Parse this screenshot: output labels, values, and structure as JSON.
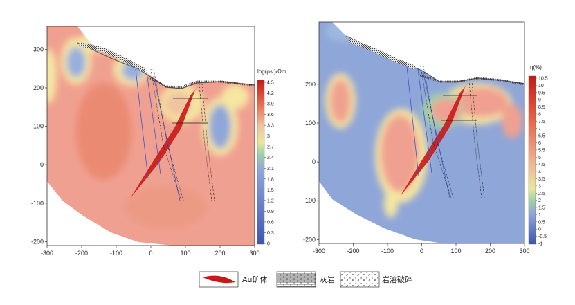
{
  "chart_data": [
    {
      "type": "heatmap",
      "panel": "left",
      "quantity": "resistivity",
      "colorbar_title": "log(ρs )/Ωm",
      "colorbar_ticks": [
        "4.5",
        "4.2",
        "3.9",
        "3.6",
        "3.3",
        "3",
        "2.7",
        "2.4",
        "2.1",
        "1.8",
        "1.5",
        "1.2",
        "0.9",
        "0.6",
        "0.3",
        "0"
      ],
      "colorbar_range": [
        0,
        4.5
      ],
      "xlim": [
        -300,
        300
      ],
      "ylim": [
        -210,
        360
      ],
      "xticks": [
        -300,
        -200,
        -100,
        0,
        100,
        200,
        300
      ],
      "yticks": [
        300,
        200,
        100,
        0,
        -100,
        -200
      ],
      "xtick_labels": [
        "-300",
        "-200",
        "-100",
        "0",
        "100",
        "200",
        "300"
      ],
      "ytick_labels": [
        "300",
        "200",
        "100",
        "0",
        "-100",
        "-200"
      ],
      "grid": false,
      "legend": "none"
    },
    {
      "type": "heatmap",
      "panel": "right",
      "quantity": "chargeability",
      "colorbar_title": "η(%)",
      "colorbar_ticks": [
        "10.5",
        "10",
        "9.5",
        "9",
        "8.5",
        "8",
        "7.5",
        "7",
        "6.5",
        "6",
        "5.5",
        "5",
        "4.5",
        "4",
        "3.5",
        "3",
        "2.5",
        "2",
        "1.5",
        "1",
        "0.5",
        "0",
        "-0.5",
        "-1"
      ],
      "colorbar_range": [
        -1,
        10.5
      ],
      "xlim": [
        -300,
        300
      ],
      "ylim": [
        -210,
        360
      ],
      "xticks": [
        -300,
        -200,
        -100,
        0,
        100,
        200,
        300
      ],
      "yticks": [
        200,
        100,
        0,
        -100,
        -200
      ],
      "xtick_labels": [
        "-300",
        "-200",
        "-100",
        "0",
        "100",
        "200",
        "300"
      ],
      "ytick_labels": [
        "200",
        "100",
        "0",
        "-100",
        "-200"
      ],
      "grid": false,
      "legend": "none"
    }
  ],
  "legend_items": [
    {
      "label": "Au矿体",
      "icon": "ore-body-icon"
    },
    {
      "label": "灰岩",
      "icon": "limestone-icon"
    },
    {
      "label": "岩溶破碎",
      "icon": "karst-breccia-icon"
    }
  ],
  "colors": {
    "high": "#f0a090",
    "mid": "#e9e79a",
    "low": "#8fa6d8",
    "ore": "#c81818",
    "drill": "#3b55c8"
  }
}
